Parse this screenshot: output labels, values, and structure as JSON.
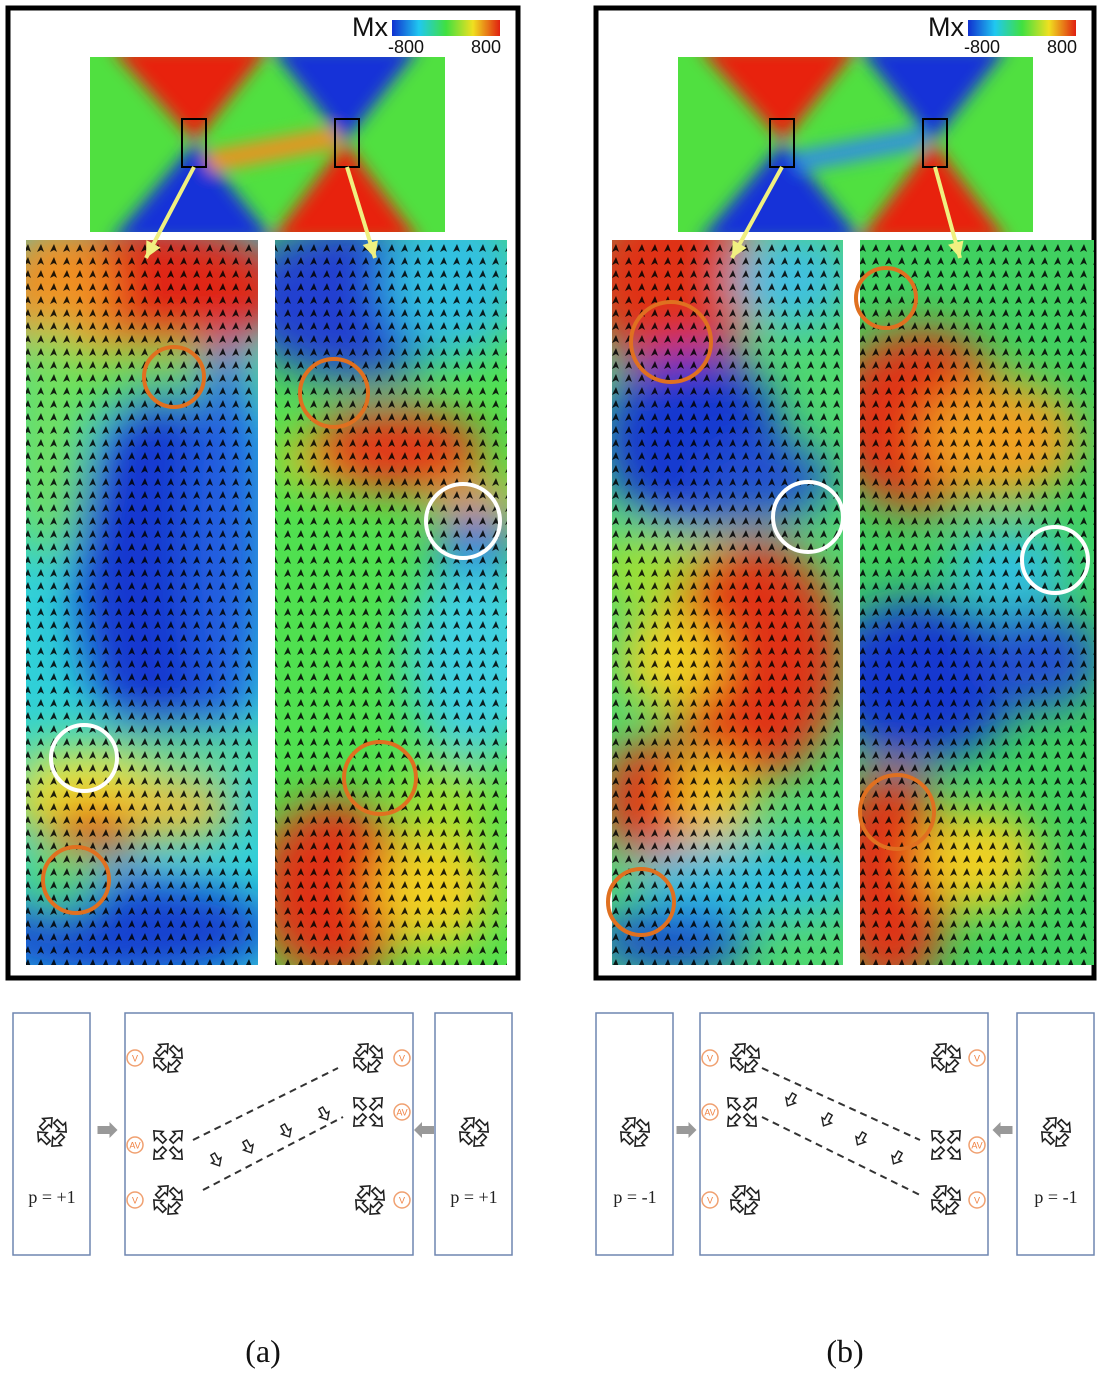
{
  "panels": [
    {
      "caption": "(a)",
      "colorbar": {
        "label": "Mx",
        "min": -800,
        "max": 800
      },
      "core_labels": [
        "p = +1",
        "p = +1"
      ],
      "markers": [
        "V",
        "AV",
        "V",
        "V",
        "AV",
        "V"
      ]
    },
    {
      "caption": "(b)",
      "colorbar": {
        "label": "Mx",
        "min": -800,
        "max": 800
      },
      "core_labels": [
        "p = -1",
        "p = -1"
      ],
      "markers": [
        "V",
        "AV",
        "V",
        "V",
        "AV",
        "V"
      ]
    }
  ]
}
